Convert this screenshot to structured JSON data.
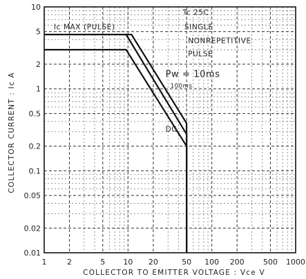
{
  "chart_data": {
    "type": "line",
    "x_scale": "log",
    "y_scale": "log",
    "xlim": [
      1,
      1000
    ],
    "ylim": [
      0.01,
      10
    ],
    "xlabel": "COLLECTOR TO EMITTER VOLTAGE : Vce  V",
    "ylabel": "COLLECTOR CURRENT : Ic  A",
    "x_ticks": [
      {
        "v": 1,
        "label": "1"
      },
      {
        "v": 2,
        "label": "2"
      },
      {
        "v": 5,
        "label": "5"
      },
      {
        "v": 10,
        "label": "10"
      },
      {
        "v": 20,
        "label": "20"
      },
      {
        "v": 50,
        "label": "50"
      },
      {
        "v": 100,
        "label": "100"
      },
      {
        "v": 200,
        "label": "200"
      },
      {
        "v": 500,
        "label": "500"
      },
      {
        "v": 1000,
        "label": "1000"
      }
    ],
    "y_ticks": [
      {
        "v": 10,
        "label": "10"
      },
      {
        "v": 5,
        "label": "5"
      },
      {
        "v": 2,
        "label": "2"
      },
      {
        "v": 1,
        "label": "1"
      },
      {
        "v": 0.5,
        "label": "0.5"
      },
      {
        "v": 0.2,
        "label": "0.2"
      },
      {
        "v": 0.1,
        "label": "0.1"
      },
      {
        "v": 0.05,
        "label": "0.05"
      },
      {
        "v": 0.02,
        "label": "0.02"
      },
      {
        "v": 0.01,
        "label": "0.01"
      }
    ],
    "grid": true,
    "series": [
      {
        "name": "DC",
        "points": [
          [
            1,
            3
          ],
          [
            9.5,
            3
          ],
          [
            50,
            0.2
          ],
          [
            50,
            0.01
          ]
        ]
      },
      {
        "name": "100ms",
        "points": [
          [
            9.5,
            4.6
          ],
          [
            50,
            0.28
          ],
          [
            50,
            0.01
          ]
        ]
      },
      {
        "name": "Pw=10ms",
        "points": [
          [
            1,
            4.6
          ],
          [
            11,
            4.6
          ],
          [
            50,
            0.38
          ],
          [
            50,
            0.01
          ]
        ]
      }
    ],
    "annotations": [
      {
        "text": "Ic MAX (PULSE)",
        "x": 1.3,
        "y": 5.3
      },
      {
        "text": "Tc  25C",
        "x": 45,
        "y": 8.0
      },
      {
        "text": "SINGLE",
        "x": 47,
        "y": 5.3
      },
      {
        "text": "NONREPETITIVE",
        "x": 52,
        "y": 3.6
      },
      {
        "text": "PULSE",
        "x": 52,
        "y": 2.5
      },
      {
        "text": "Pw = 10ms",
        "x": 28,
        "y": 1.4
      },
      {
        "text": "100ms",
        "x": 32,
        "y": 1.03
      },
      {
        "text": "DC",
        "x": 28,
        "y": 0.3
      }
    ]
  }
}
